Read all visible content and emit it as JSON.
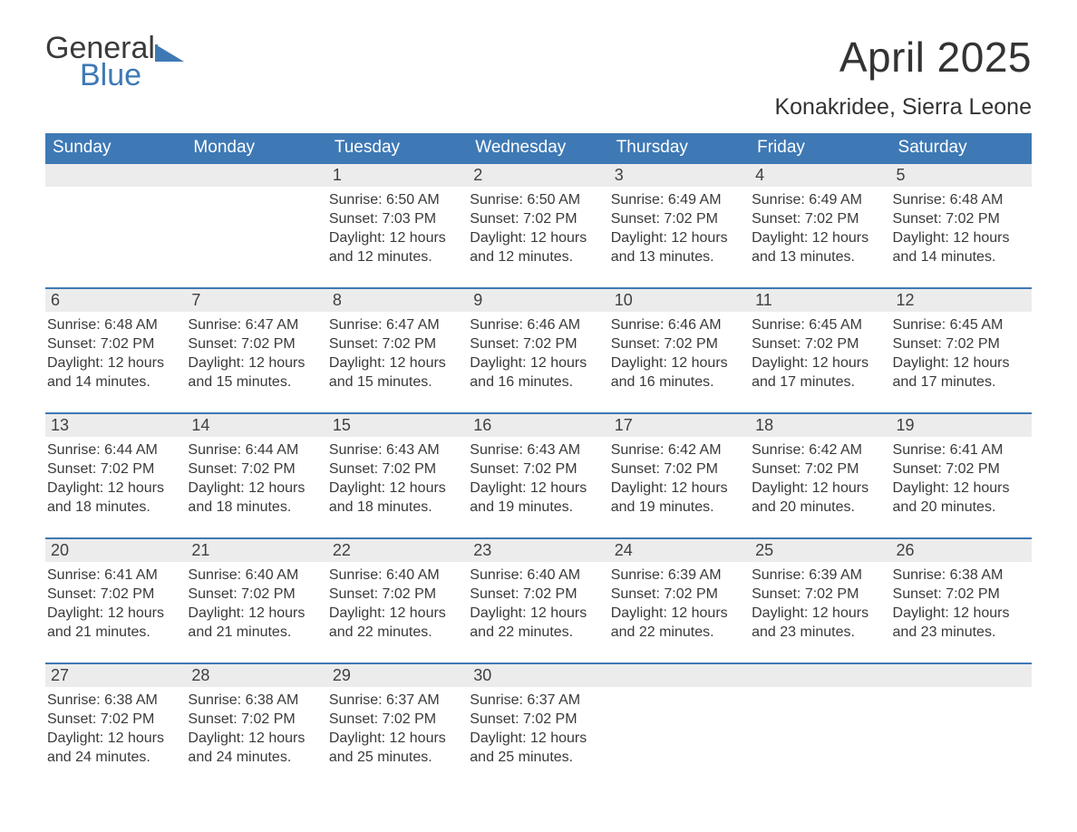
{
  "brand": {
    "word1": "General",
    "word2": "Blue",
    "logo_color": "#3e79b5"
  },
  "header": {
    "title": "April 2025",
    "location": "Konakridee, Sierra Leone"
  },
  "colors": {
    "header_bg": "#3e79b5",
    "header_text": "#ffffff",
    "row_divider": "#3e79b5",
    "daynum_bg": "#ececec",
    "body_text": "#3a3a3a",
    "page_bg": "#ffffff"
  },
  "layout": {
    "columns": 7,
    "weeks": 5
  },
  "weekdays": [
    "Sunday",
    "Monday",
    "Tuesday",
    "Wednesday",
    "Thursday",
    "Friday",
    "Saturday"
  ],
  "weeks": [
    [
      null,
      null,
      {
        "n": "1",
        "sunrise": "6:50 AM",
        "sunset": "7:03 PM",
        "daylight": "12 hours and 12 minutes."
      },
      {
        "n": "2",
        "sunrise": "6:50 AM",
        "sunset": "7:02 PM",
        "daylight": "12 hours and 12 minutes."
      },
      {
        "n": "3",
        "sunrise": "6:49 AM",
        "sunset": "7:02 PM",
        "daylight": "12 hours and 13 minutes."
      },
      {
        "n": "4",
        "sunrise": "6:49 AM",
        "sunset": "7:02 PM",
        "daylight": "12 hours and 13 minutes."
      },
      {
        "n": "5",
        "sunrise": "6:48 AM",
        "sunset": "7:02 PM",
        "daylight": "12 hours and 14 minutes."
      }
    ],
    [
      {
        "n": "6",
        "sunrise": "6:48 AM",
        "sunset": "7:02 PM",
        "daylight": "12 hours and 14 minutes."
      },
      {
        "n": "7",
        "sunrise": "6:47 AM",
        "sunset": "7:02 PM",
        "daylight": "12 hours and 15 minutes."
      },
      {
        "n": "8",
        "sunrise": "6:47 AM",
        "sunset": "7:02 PM",
        "daylight": "12 hours and 15 minutes."
      },
      {
        "n": "9",
        "sunrise": "6:46 AM",
        "sunset": "7:02 PM",
        "daylight": "12 hours and 16 minutes."
      },
      {
        "n": "10",
        "sunrise": "6:46 AM",
        "sunset": "7:02 PM",
        "daylight": "12 hours and 16 minutes."
      },
      {
        "n": "11",
        "sunrise": "6:45 AM",
        "sunset": "7:02 PM",
        "daylight": "12 hours and 17 minutes."
      },
      {
        "n": "12",
        "sunrise": "6:45 AM",
        "sunset": "7:02 PM",
        "daylight": "12 hours and 17 minutes."
      }
    ],
    [
      {
        "n": "13",
        "sunrise": "6:44 AM",
        "sunset": "7:02 PM",
        "daylight": "12 hours and 18 minutes."
      },
      {
        "n": "14",
        "sunrise": "6:44 AM",
        "sunset": "7:02 PM",
        "daylight": "12 hours and 18 minutes."
      },
      {
        "n": "15",
        "sunrise": "6:43 AM",
        "sunset": "7:02 PM",
        "daylight": "12 hours and 18 minutes."
      },
      {
        "n": "16",
        "sunrise": "6:43 AM",
        "sunset": "7:02 PM",
        "daylight": "12 hours and 19 minutes."
      },
      {
        "n": "17",
        "sunrise": "6:42 AM",
        "sunset": "7:02 PM",
        "daylight": "12 hours and 19 minutes."
      },
      {
        "n": "18",
        "sunrise": "6:42 AM",
        "sunset": "7:02 PM",
        "daylight": "12 hours and 20 minutes."
      },
      {
        "n": "19",
        "sunrise": "6:41 AM",
        "sunset": "7:02 PM",
        "daylight": "12 hours and 20 minutes."
      }
    ],
    [
      {
        "n": "20",
        "sunrise": "6:41 AM",
        "sunset": "7:02 PM",
        "daylight": "12 hours and 21 minutes."
      },
      {
        "n": "21",
        "sunrise": "6:40 AM",
        "sunset": "7:02 PM",
        "daylight": "12 hours and 21 minutes."
      },
      {
        "n": "22",
        "sunrise": "6:40 AM",
        "sunset": "7:02 PM",
        "daylight": "12 hours and 22 minutes."
      },
      {
        "n": "23",
        "sunrise": "6:40 AM",
        "sunset": "7:02 PM",
        "daylight": "12 hours and 22 minutes."
      },
      {
        "n": "24",
        "sunrise": "6:39 AM",
        "sunset": "7:02 PM",
        "daylight": "12 hours and 22 minutes."
      },
      {
        "n": "25",
        "sunrise": "6:39 AM",
        "sunset": "7:02 PM",
        "daylight": "12 hours and 23 minutes."
      },
      {
        "n": "26",
        "sunrise": "6:38 AM",
        "sunset": "7:02 PM",
        "daylight": "12 hours and 23 minutes."
      }
    ],
    [
      {
        "n": "27",
        "sunrise": "6:38 AM",
        "sunset": "7:02 PM",
        "daylight": "12 hours and 24 minutes."
      },
      {
        "n": "28",
        "sunrise": "6:38 AM",
        "sunset": "7:02 PM",
        "daylight": "12 hours and 24 minutes."
      },
      {
        "n": "29",
        "sunrise": "6:37 AM",
        "sunset": "7:02 PM",
        "daylight": "12 hours and 25 minutes."
      },
      {
        "n": "30",
        "sunrise": "6:37 AM",
        "sunset": "7:02 PM",
        "daylight": "12 hours and 25 minutes."
      },
      null,
      null,
      null
    ]
  ],
  "labels": {
    "sunrise": "Sunrise:",
    "sunset": "Sunset:",
    "daylight": "Daylight:"
  }
}
